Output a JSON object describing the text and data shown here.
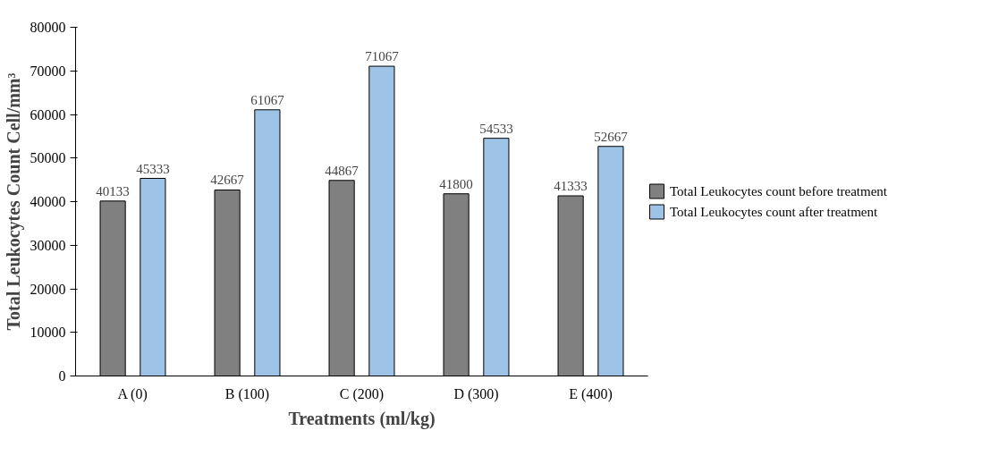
{
  "chart_data": {
    "type": "bar",
    "xlabel": "Treatments (ml/kg)",
    "ylabel": "Total Leukocytes Count Cell/mm³",
    "categories": [
      "A (0)",
      "B (100)",
      "C (200)",
      "D (300)",
      "E (400)"
    ],
    "series": [
      {
        "name": "Total Leukocytes count before treatment",
        "color": "#808080",
        "values": [
          40133,
          42667,
          44867,
          41800,
          41333
        ]
      },
      {
        "name": "Total Leukocytes count after treatment",
        "color": "#9dc3e6",
        "values": [
          45333,
          61067,
          71067,
          54533,
          52667
        ]
      }
    ],
    "ylim": [
      0,
      80000
    ],
    "yticks": [
      0,
      10000,
      20000,
      30000,
      40000,
      50000,
      60000,
      70000,
      80000
    ],
    "data_labels": true,
    "legend": "right",
    "grid": false
  }
}
